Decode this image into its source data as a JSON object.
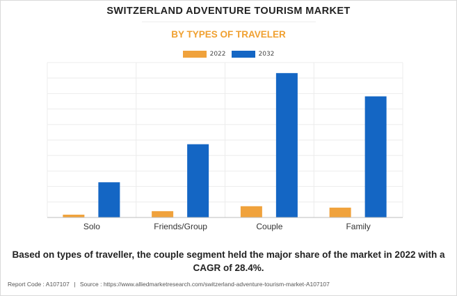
{
  "header": {
    "title": "SWITZERLAND ADVENTURE TOURISM MARKET",
    "subtitle": "BY TYPES OF TRAVELER"
  },
  "chart_data": {
    "type": "bar",
    "categories": [
      "Solo",
      "Friends/Group",
      "Couple",
      "Family"
    ],
    "series": [
      {
        "name": "2022",
        "color": "#f0a23c",
        "values": [
          4,
          9,
          16,
          14
        ]
      },
      {
        "name": "2032",
        "color": "#1466c4",
        "values": [
          50,
          104,
          205,
          172
        ]
      }
    ],
    "ylim": [
      0,
      220
    ],
    "grid": true,
    "legend_position": "top-center",
    "xlabel": "",
    "ylabel": ""
  },
  "caption": "Based on types of traveller, the couple segment held the major share of the market in 2022 with a CAGR of 28.4%.",
  "footer": {
    "report_code": "Report Code : A107107",
    "separator": "|",
    "source": "Source : https://www.alliedmarketresearch.com/switzerland-adventure-tourism-market-A107107"
  }
}
